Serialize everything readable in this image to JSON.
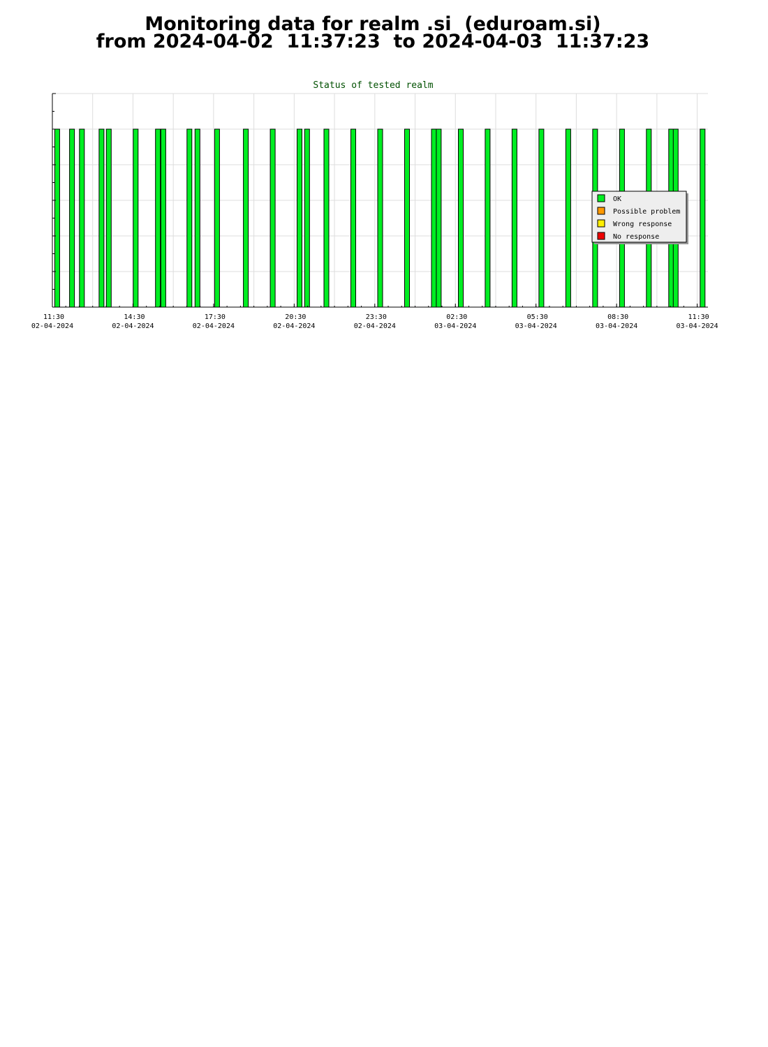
{
  "page": {
    "title_line1": "Monitoring data for realm .si  (eduroam.si)",
    "title_line2": "from 2024-04-02  11:37:23  to 2024-04-03  11:37:23"
  },
  "chart_data": {
    "type": "bar",
    "title": "Status of tested realm",
    "x_range_hours": [
      11.5,
      35.9
    ],
    "ylim": [
      0,
      6
    ],
    "grid": true,
    "legend_position": "right",
    "x_ticks": [
      {
        "hour": 11.5,
        "time": "11:30",
        "date": "02-04-2024"
      },
      {
        "hour": 14.5,
        "time": "14:30",
        "date": "02-04-2024"
      },
      {
        "hour": 17.5,
        "time": "17:30",
        "date": "02-04-2024"
      },
      {
        "hour": 20.5,
        "time": "20:30",
        "date": "02-04-2024"
      },
      {
        "hour": 23.5,
        "time": "23:30",
        "date": "02-04-2024"
      },
      {
        "hour": 26.5,
        "time": "02:30",
        "date": "03-04-2024"
      },
      {
        "hour": 29.5,
        "time": "05:30",
        "date": "03-04-2024"
      },
      {
        "hour": 32.5,
        "time": "08:30",
        "date": "03-04-2024"
      },
      {
        "hour": 35.5,
        "time": "11:30",
        "date": "03-04-2024"
      }
    ],
    "legend": [
      {
        "label": "OK",
        "color": "#00ee22"
      },
      {
        "label": "Possible problem",
        "color": "#ff9900"
      },
      {
        "label": "Wrong response",
        "color": "#ffee00"
      },
      {
        "label": "No response",
        "color": "#ee0000"
      }
    ],
    "series": [
      {
        "status": "OK",
        "color": "#00ee22",
        "value": 5,
        "hours": [
          11.68,
          12.23,
          12.6,
          13.33,
          13.6,
          14.6,
          15.43,
          15.63,
          16.6,
          16.9,
          17.63,
          18.7,
          19.7,
          20.7,
          20.98,
          21.7,
          22.7,
          23.7,
          24.7,
          25.7,
          25.88,
          26.7,
          27.7,
          28.7,
          29.7,
          30.7,
          31.7,
          32.7,
          33.7,
          34.53,
          34.7,
          35.7
        ]
      }
    ]
  }
}
